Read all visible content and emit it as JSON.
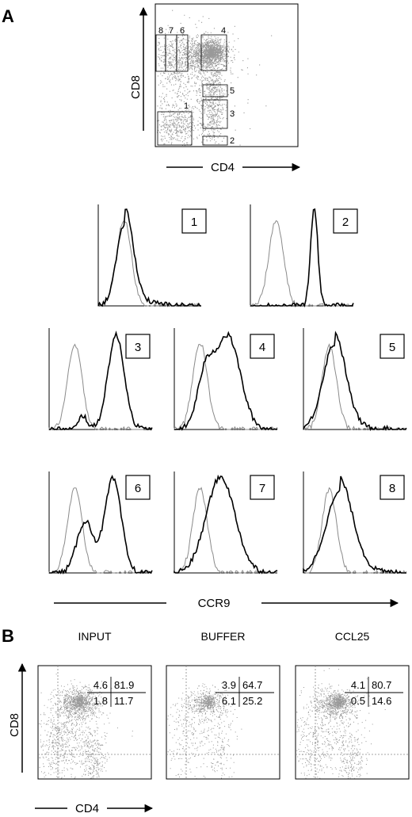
{
  "panel_a": {
    "letter": "A",
    "dot_plot": {
      "xlabel": "CD4",
      "ylabel": "CD8",
      "gate_labels": [
        "1",
        "2",
        "3",
        "4",
        "5",
        "6",
        "7",
        "8"
      ]
    },
    "histogram_xlabel": "CCR9",
    "histograms": [
      {
        "label": "1",
        "ctrl": {
          "peak": 0.25,
          "width": 0.07
        },
        "stain": {
          "peak": 0.26,
          "width": 0.08,
          "tail": 0.2
        }
      },
      {
        "label": "2",
        "ctrl": {
          "peak": 0.25,
          "width": 0.07
        },
        "stain": {
          "peak": 0.62,
          "width": 0.035
        }
      },
      {
        "label": "3",
        "ctrl": {
          "peak": 0.25,
          "width": 0.07
        },
        "stain": {
          "peak": 0.65,
          "width": 0.08,
          "small_peak": 0.33
        }
      },
      {
        "label": "4",
        "ctrl": {
          "peak": 0.25,
          "width": 0.07
        },
        "stain": {
          "peak": 0.52,
          "width": 0.12,
          "shoulder": 0.3
        }
      },
      {
        "label": "5",
        "ctrl": {
          "peak": 0.25,
          "width": 0.07
        },
        "stain": {
          "peak": 0.3,
          "width": 0.11,
          "tail": 0.15
        }
      },
      {
        "label": "6",
        "ctrl": {
          "peak": 0.25,
          "width": 0.07
        },
        "stain": {
          "peak": 0.62,
          "width": 0.08,
          "shoulder": 0.35
        }
      },
      {
        "label": "7",
        "ctrl": {
          "peak": 0.25,
          "width": 0.07
        },
        "stain": {
          "peak": 0.45,
          "width": 0.14
        }
      },
      {
        "label": "8",
        "ctrl": {
          "peak": 0.25,
          "width": 0.07
        },
        "stain": {
          "peak": 0.35,
          "width": 0.13,
          "tail": 0.2
        }
      }
    ]
  },
  "panel_b": {
    "letter": "B",
    "xlabel": "CD4",
    "ylabel": "CD8",
    "plots": [
      {
        "condition": "INPUT",
        "quadrants": {
          "ul": "4.6",
          "ur": "81.9",
          "ll": "1.8",
          "lr": "11.7"
        }
      },
      {
        "condition": "BUFFER",
        "quadrants": {
          "ul": "3.9",
          "ur": "64.7",
          "ll": "6.1",
          "lr": "25.2"
        }
      },
      {
        "condition": "CCL25",
        "quadrants": {
          "ul": "4.1",
          "ur": "80.7",
          "ll": "0.5",
          "lr": "14.6"
        }
      }
    ]
  },
  "colors": {
    "stain": "#000000",
    "control": "#8a8a8a",
    "dots": "#555555"
  }
}
